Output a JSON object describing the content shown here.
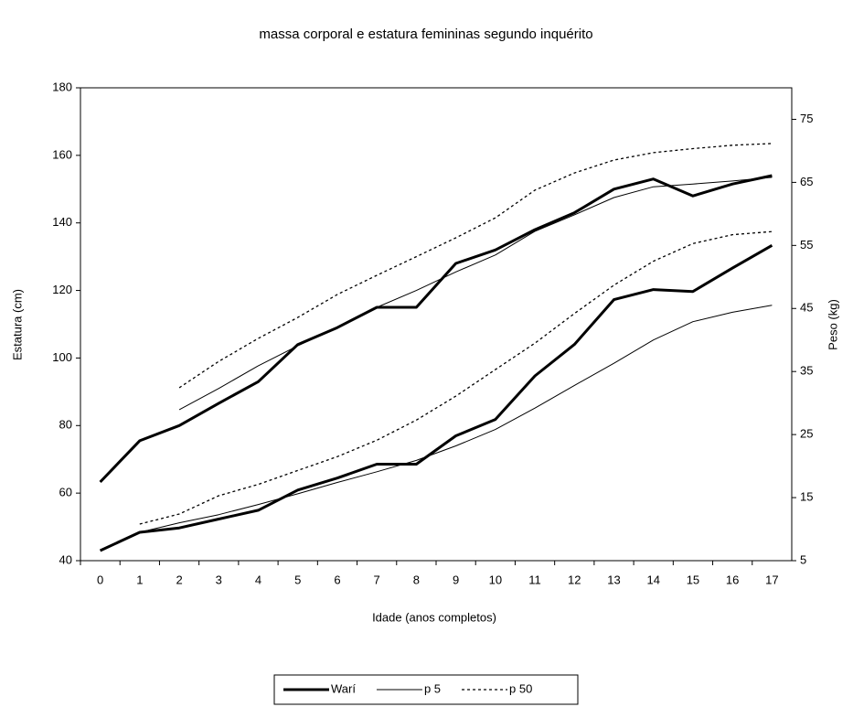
{
  "chart_data": {
    "type": "line",
    "title": "massa corporal e estatura femininas segundo inquérito",
    "xlabel": "Idade (anos completos)",
    "ylabel": "Estatura (cm)",
    "y2label": "Peso (kg)",
    "categories": [
      "0",
      "1",
      "2",
      "3",
      "4",
      "5",
      "6",
      "7",
      "8",
      "9",
      "10",
      "11",
      "12",
      "13",
      "14",
      "15",
      "16",
      "17"
    ],
    "ylim": [
      40,
      180
    ],
    "yticks": [
      40,
      60,
      80,
      100,
      120,
      140,
      160,
      180
    ],
    "y2lim": [
      5,
      80
    ],
    "y2ticks": [
      5,
      15,
      25,
      35,
      45,
      55,
      65,
      75
    ],
    "grid": false,
    "legend": "bottom",
    "series": [
      {
        "name": "Warí",
        "color": "#000000",
        "style": "bold",
        "values": [
          63.3,
          75.5,
          80,
          86.6,
          93,
          104,
          109,
          115,
          115,
          128,
          132,
          138,
          143,
          150,
          153,
          148,
          151.5,
          154
        ]
      },
      {
        "name": "p 5",
        "color": "#000000",
        "style": "thin",
        "values": [
          null,
          null,
          84.7,
          91,
          97.7,
          103.6,
          109,
          115,
          120,
          125.5,
          130.5,
          137.5,
          142.4,
          147.5,
          150.7,
          151.5,
          152.4,
          153.5
        ]
      },
      {
        "name": "p 50",
        "color": "#000000",
        "style": "dashed",
        "values": [
          null,
          null,
          91.2,
          99,
          105.8,
          112,
          118.8,
          124.5,
          130,
          135.6,
          141.5,
          149.7,
          154.8,
          158.6,
          160.8,
          162,
          163,
          163.5
        ]
      },
      {
        "name": "Warí",
        "color": "#000000",
        "style": "bold",
        "axis": "y2",
        "values": [
          6.6,
          9.5,
          10.2,
          11.6,
          13,
          16.2,
          18.1,
          20.3,
          20.3,
          24.8,
          27.4,
          34.3,
          39.3,
          46.4,
          48,
          47.7,
          51.4,
          55
        ]
      },
      {
        "name": "p 5",
        "color": "#000000",
        "style": "thin",
        "axis": "y2",
        "values": [
          6.6,
          9.5,
          11,
          12.3,
          13.9,
          15.6,
          17.4,
          19.1,
          20.9,
          23.2,
          25.8,
          29.2,
          32.8,
          36.3,
          40,
          42.9,
          44.4,
          45.5
        ]
      },
      {
        "name": "p 50",
        "color": "#000000",
        "style": "dashed",
        "axis": "y2",
        "values": [
          null,
          10.8,
          12.4,
          15.3,
          17.1,
          19.3,
          21.5,
          24.1,
          27.3,
          31.1,
          35.3,
          39.5,
          44.2,
          48.7,
          52.5,
          55.3,
          56.7,
          57.2
        ]
      }
    ]
  }
}
